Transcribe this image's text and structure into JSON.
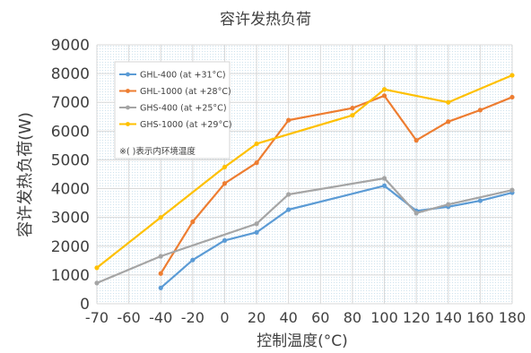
{
  "chart_data": {
    "type": "line",
    "title": "容许发热负荷",
    "xlabel": "控制温度(°C)",
    "ylabel": "容许发热负荷(W)",
    "x_ticks": [
      -70,
      -60,
      -40,
      -20,
      0,
      20,
      40,
      60,
      80,
      100,
      120,
      140,
      160,
      180
    ],
    "y_ticks": [
      0,
      1000,
      2000,
      3000,
      4000,
      5000,
      6000,
      7000,
      8000,
      9000
    ],
    "ylim": [
      0,
      9000
    ],
    "grid": true,
    "legend_position": "top-left",
    "legend_note": "※( )表示内环境温度",
    "series": [
      {
        "name": "GHL-400  (at +31°C)",
        "color": "#5B9BD5",
        "points": [
          [
            -40,
            550
          ],
          [
            -20,
            1520
          ],
          [
            0,
            2200
          ],
          [
            20,
            2480
          ],
          [
            40,
            3270
          ],
          [
            100,
            4100
          ],
          [
            120,
            3230
          ],
          [
            140,
            3370
          ],
          [
            160,
            3580
          ],
          [
            180,
            3860
          ]
        ]
      },
      {
        "name": "GHL-1000 (at +28°C)",
        "color": "#ED7D31",
        "points": [
          [
            -40,
            1050
          ],
          [
            -20,
            2850
          ],
          [
            0,
            4180
          ],
          [
            20,
            4900
          ],
          [
            40,
            6380
          ],
          [
            80,
            6800
          ],
          [
            100,
            7230
          ],
          [
            120,
            5680
          ],
          [
            140,
            6330
          ],
          [
            160,
            6730
          ],
          [
            180,
            7180
          ]
        ]
      },
      {
        "name": "GHS-400  (at +25°C)",
        "color": "#A5A5A5",
        "points": [
          [
            -70,
            720
          ],
          [
            -40,
            1650
          ],
          [
            20,
            2780
          ],
          [
            40,
            3800
          ],
          [
            100,
            4360
          ],
          [
            120,
            3150
          ],
          [
            140,
            3450
          ],
          [
            180,
            3950
          ]
        ]
      },
      {
        "name": "GHS-1000 (at +29°C)",
        "color": "#FFC000",
        "points": [
          [
            -70,
            1250
          ],
          [
            -40,
            3000
          ],
          [
            0,
            4750
          ],
          [
            20,
            5560
          ],
          [
            80,
            6550
          ],
          [
            100,
            7450
          ],
          [
            140,
            7000
          ],
          [
            180,
            7940
          ]
        ]
      }
    ]
  }
}
